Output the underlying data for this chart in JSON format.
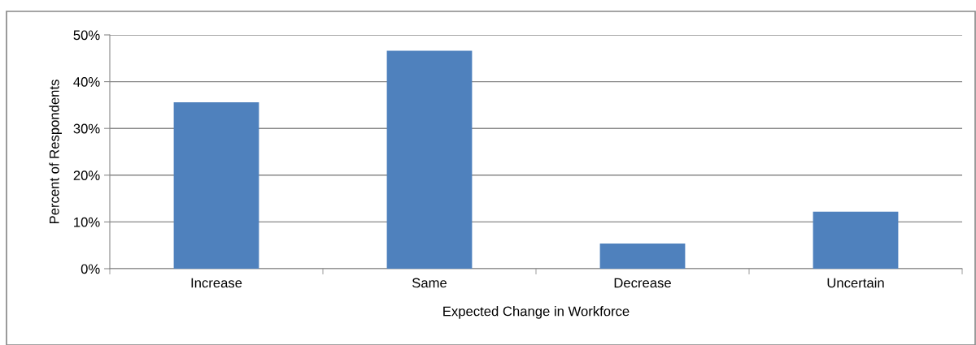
{
  "chart_data": {
    "type": "bar",
    "xlabel": "Expected Change in Workforce",
    "ylabel": "Percent of Respondents",
    "categories": [
      "Increase",
      "Same",
      "Decrease",
      "Uncertain"
    ],
    "values": [
      35.6,
      46.6,
      5.4,
      12.2
    ],
    "color": "#4f81bd",
    "ylim": [
      0,
      50
    ],
    "yticks": [
      {
        "value": 0,
        "label": "0%"
      },
      {
        "value": 10,
        "label": "10%"
      },
      {
        "value": 20,
        "label": "20%"
      },
      {
        "value": 30,
        "label": "30%"
      },
      {
        "value": 40,
        "label": "40%"
      },
      {
        "value": 50,
        "label": "50%"
      }
    ],
    "grid": "y"
  }
}
